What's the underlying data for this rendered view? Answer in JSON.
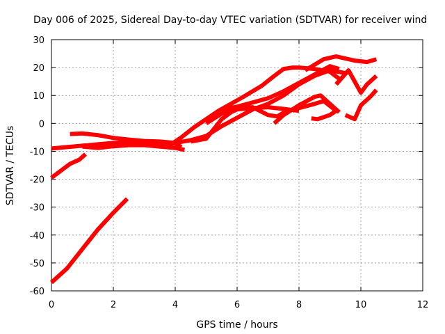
{
  "chart_data": {
    "type": "line",
    "title": "Day 006 of 2025, Sidereal Day-to-day VTEC variation (SDTVAR) for receiver wind",
    "xlabel": "GPS time / hours",
    "ylabel": "SDTVAR / TECUs",
    "xlim": [
      0,
      12
    ],
    "ylim": [
      -60,
      30
    ],
    "xticks": [
      "0",
      "2",
      "4",
      "6",
      "8",
      "10",
      "12"
    ],
    "yticks": [
      "30",
      "20",
      "10",
      "0",
      "-10",
      "-20",
      "-30",
      "-40",
      "-50",
      "-60"
    ],
    "grid": true,
    "legend": "none",
    "color": "#ff0000",
    "series": [
      {
        "x": [
          0.0,
          0.5,
          1.0,
          1.5,
          2.0,
          2.45
        ],
        "y": [
          -57,
          -52,
          -45,
          -38,
          -32,
          -27
        ]
      },
      {
        "x": [
          0.0,
          0.3,
          0.6,
          0.9,
          1.1
        ],
        "y": [
          -19.5,
          -17,
          -14.5,
          -13,
          -11
        ]
      },
      {
        "x": [
          0.0,
          0.5,
          1.0,
          1.5,
          2.0,
          2.5,
          3.0,
          3.5,
          4.0,
          4.2
        ],
        "y": [
          -9,
          -8.5,
          -8,
          -7.5,
          -7,
          -6.8,
          -6.8,
          -7,
          -7.2,
          -8.5
        ]
      },
      {
        "x": [
          0.6,
          1.0,
          1.5,
          2.0,
          2.5,
          3.0,
          3.5,
          4.0
        ],
        "y": [
          -3.8,
          -3.6,
          -4.2,
          -5.2,
          -5.8,
          -6.3,
          -6.5,
          -7
        ]
      },
      {
        "x": [
          1.0,
          1.5,
          2.0,
          2.5,
          3.0,
          3.5,
          4.0,
          4.3
        ],
        "y": [
          -8.3,
          -8.8,
          -8.2,
          -7.8,
          -7.8,
          -8.3,
          -8.8,
          -9.5
        ]
      },
      {
        "x": [
          3.8,
          4.2,
          4.6,
          5.0,
          5.4,
          5.8,
          6.2,
          6.5,
          6.8,
          7.2,
          7.5,
          7.8,
          8.0,
          8.5,
          9.0,
          9.3
        ],
        "y": [
          -8,
          -5,
          -1.5,
          1.5,
          4.5,
          7,
          9.5,
          11.5,
          13.5,
          17,
          19.5,
          20,
          20,
          19.5,
          18.5,
          16
        ]
      },
      {
        "x": [
          4.0,
          4.5,
          5.0,
          5.5,
          6.0,
          6.5,
          7.0,
          7.5,
          8.0,
          8.5,
          9.0,
          9.5
        ],
        "y": [
          -7,
          -6,
          -4.5,
          -1,
          2,
          5,
          7,
          10,
          14,
          17,
          19,
          18
        ]
      },
      {
        "x": [
          4.5,
          5.0,
          5.5,
          5.8,
          6.0,
          6.5,
          7.0,
          7.5,
          8.0
        ],
        "y": [
          -6.5,
          -5.5,
          1.5,
          4,
          5,
          5.5,
          5.8,
          5.2,
          4.5
        ]
      },
      {
        "x": [
          5.0,
          5.5,
          6.0,
          6.5,
          7.0,
          7.3,
          7.6
        ],
        "y": [
          0,
          3.5,
          5.5,
          5.8,
          3,
          2.5,
          4.5
        ]
      },
      {
        "x": [
          5.5,
          6.0,
          6.5,
          7.0,
          7.5,
          8.0,
          8.5,
          9.0,
          9.3
        ],
        "y": [
          5,
          6,
          7.5,
          9,
          11.5,
          14.5,
          17.5,
          20.5,
          19.5
        ]
      },
      {
        "x": [
          7.2,
          7.5,
          8.0,
          8.5,
          8.7,
          9.0,
          9.3
        ],
        "y": [
          0,
          3,
          6.5,
          9.5,
          10,
          7,
          4
        ]
      },
      {
        "x": [
          7.8,
          8.0,
          8.5,
          8.8,
          9.2,
          9.0,
          8.6,
          8.4
        ],
        "y": [
          4.5,
          5.5,
          7,
          8,
          4.5,
          3,
          1.5,
          1.8
        ]
      },
      {
        "x": [
          8.2,
          8.5,
          8.8,
          9.2,
          9.8,
          10.2,
          10.5
        ],
        "y": [
          19,
          21,
          23,
          24,
          22.5,
          22,
          23
        ]
      },
      {
        "x": [
          9.2,
          9.6,
          10.0,
          10.2,
          10.5
        ],
        "y": [
          14,
          19,
          11,
          14,
          17
        ]
      },
      {
        "x": [
          9.5,
          9.8,
          10.0,
          10.3,
          10.5
        ],
        "y": [
          3,
          1.5,
          6.5,
          9.5,
          12
        ]
      }
    ]
  }
}
